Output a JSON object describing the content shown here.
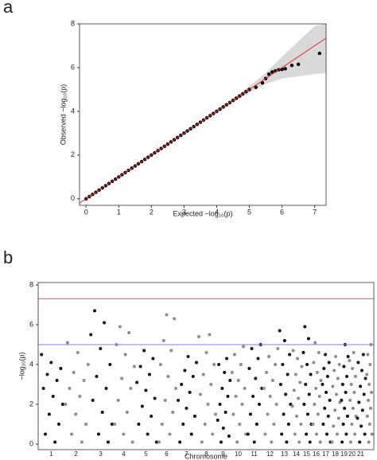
{
  "chart_data": [
    {
      "type": "qq",
      "panel_label": "a",
      "xlabel": "Expected  −log₁₀(p)",
      "ylabel": "Observed  −log₁₀(p)",
      "xlim": [
        -0.2,
        7.35
      ],
      "ylim": [
        -0.3,
        8
      ],
      "xticks": [
        0,
        1,
        2,
        3,
        4,
        5,
        6,
        7
      ],
      "yticks": [
        0,
        2,
        4,
        6,
        8
      ],
      "color": "#000000",
      "line_color": "#e03030",
      "band_color": "#d9d9d9",
      "x": [
        0,
        0.1,
        0.2,
        0.3,
        0.4,
        0.5,
        0.6,
        0.7,
        0.8,
        0.9,
        1,
        1.1,
        1.2,
        1.3,
        1.4,
        1.5,
        1.6,
        1.7,
        1.8,
        1.9,
        2,
        2.1,
        2.2,
        2.3,
        2.4,
        2.5,
        2.6,
        2.7,
        2.8,
        2.9,
        3,
        3.1,
        3.2,
        3.3,
        3.4,
        3.5,
        3.6,
        3.7,
        3.8,
        3.9,
        4,
        4.1,
        4.2,
        4.3,
        4.4,
        4.5,
        4.6,
        4.7,
        4.8,
        4.9,
        5,
        5.2,
        5.4,
        5.5,
        5.6,
        5.7,
        5.8,
        5.9,
        6,
        6.1,
        6.3,
        6.5,
        7.15
      ],
      "values": [
        0,
        0.1,
        0.2,
        0.3,
        0.4,
        0.5,
        0.6,
        0.7,
        0.8,
        0.9,
        1,
        1.1,
        1.2,
        1.3,
        1.4,
        1.5,
        1.6,
        1.7,
        1.8,
        1.9,
        2,
        2.1,
        2.2,
        2.3,
        2.4,
        2.5,
        2.6,
        2.7,
        2.8,
        2.9,
        3,
        3.1,
        3.2,
        3.3,
        3.4,
        3.5,
        3.6,
        3.7,
        3.8,
        3.9,
        4,
        4.1,
        4.2,
        4.3,
        4.4,
        4.5,
        4.6,
        4.7,
        4.8,
        4.9,
        5,
        5.1,
        5.3,
        5.5,
        5.7,
        5.8,
        5.85,
        5.9,
        5.92,
        5.95,
        6.1,
        6.15,
        6.65
      ],
      "band": {
        "x": [
          4.5,
          5,
          5.5,
          6,
          6.5,
          7,
          7.35
        ],
        "lower": [
          4.4,
          4.85,
          5.25,
          5.5,
          5.6,
          5.7,
          5.75
        ],
        "upper": [
          4.6,
          5.15,
          5.75,
          6.5,
          7.2,
          7.9,
          8
        ]
      }
    },
    {
      "type": "manhattan",
      "panel_label": "b",
      "xlabel": "Chromosome",
      "ylabel": "−log₁₀(p)",
      "ylim": [
        -0.28,
        8.12
      ],
      "yticks": [
        0,
        2,
        4,
        6,
        8
      ],
      "colors": [
        "#111111",
        "#8c8c8c"
      ],
      "thresholds": [
        {
          "value": 7.3,
          "color": "#e07070"
        },
        {
          "value": 5,
          "color": "#8080d8"
        }
      ],
      "categories": [
        "1",
        "2",
        "3",
        "4",
        "5",
        "6",
        "7",
        "8",
        "9",
        "10",
        "11",
        "12",
        "13",
        "14",
        "15",
        "16",
        "17",
        "18",
        "19",
        "20",
        "21",
        null
      ],
      "series": [
        [
          4.5,
          4.1,
          3.8,
          3.5,
          3.2,
          2.8,
          2.4,
          2,
          1.5,
          1,
          0.5,
          0.1
        ],
        [
          5.1,
          4.6,
          4.0,
          3.6,
          3.2,
          2.8,
          2.4,
          2,
          1.5,
          1,
          0.5,
          0.1
        ],
        [
          6.7,
          6.1,
          5.5,
          4.8,
          4.0,
          3.4,
          2.8,
          2.2,
          1.6,
          1,
          0.5,
          0.1
        ],
        [
          5.9,
          5.6,
          5.0,
          4.5,
          3.9,
          3.3,
          2.8,
          2.2,
          1.6,
          1,
          0.5,
          0.1
        ],
        [
          4.7,
          4.3,
          3.9,
          3.5,
          3.1,
          2.7,
          2.3,
          1.9,
          1.4,
          1,
          0.5,
          0.1
        ],
        [
          6.5,
          6.3,
          5.2,
          4.7,
          4.0,
          3.4,
          2.8,
          2.2,
          1.6,
          1,
          0.5,
          0.1
        ],
        [
          4.4,
          4.1,
          3.7,
          3.4,
          3.0,
          2.6,
          2.2,
          1.8,
          1.4,
          1,
          0.5,
          0.1
        ],
        [
          5.5,
          5.4,
          4.6,
          4.0,
          3.5,
          3.0,
          2.5,
          2,
          1.5,
          1,
          0.5,
          0.1
        ],
        [
          4.3,
          4.0,
          3.6,
          3.2,
          2.8,
          2.4,
          2,
          1.6,
          1.2,
          0.8,
          0.4,
          0.1
        ],
        [
          4.9,
          4.5,
          4.0,
          3.6,
          3.2,
          2.8,
          2.4,
          2,
          1.5,
          1,
          0.5,
          0.1
        ],
        [
          5.0,
          4.8,
          4.3,
          3.8,
          3.3,
          2.8,
          2.4,
          2,
          1.5,
          1,
          0.5,
          0.1
        ],
        [
          4.8,
          4.4,
          4.0,
          3.6,
          3.2,
          2.8,
          2.4,
          2,
          1.5,
          1,
          0.5,
          0.1
        ],
        [
          5.7,
          5.2,
          4.5,
          4.0,
          3.5,
          3.0,
          2.5,
          2,
          1.5,
          1,
          0.5,
          0.1
        ],
        [
          4.7,
          4.3,
          3.9,
          3.5,
          3.1,
          2.7,
          2.3,
          1.9,
          1.4,
          1,
          0.5,
          0.1
        ],
        [
          5.9,
          5.3,
          4.6,
          4.0,
          3.5,
          3.0,
          2.5,
          2,
          1.5,
          1,
          0.5,
          0.1
        ],
        [
          5.1,
          4.6,
          4.1,
          3.6,
          3.2,
          2.8,
          2.4,
          2,
          1.5,
          1,
          0.5,
          0.1
        ],
        [
          4.5,
          4.1,
          3.8,
          3.4,
          3.0,
          2.6,
          2.2,
          1.8,
          1.4,
          1,
          0.5,
          0.1
        ],
        [
          4.4,
          4.0,
          3.7,
          3.3,
          2.9,
          2.5,
          2.1,
          1.7,
          1.3,
          0.9,
          0.5,
          0.1
        ],
        [
          5.0,
          4.4,
          3.9,
          3.4,
          3.0,
          2.6,
          2.2,
          1.8,
          1.4,
          1,
          0.5,
          0.1
        ],
        [
          4.6,
          4.2,
          3.8,
          3.4,
          3.0,
          2.6,
          2.2,
          1.8,
          1.4,
          1,
          0.5,
          0.1
        ],
        [
          4.5,
          4.1,
          3.7,
          3.3,
          2.9,
          2.5,
          2.1,
          1.7,
          1.3,
          0.9,
          0.5,
          0.1
        ],
        [
          5.0,
          4.5,
          4.0,
          3.5,
          3.0,
          2.6,
          2.2,
          1.8,
          1.4,
          1,
          0.5,
          0.1
        ]
      ]
    }
  ]
}
